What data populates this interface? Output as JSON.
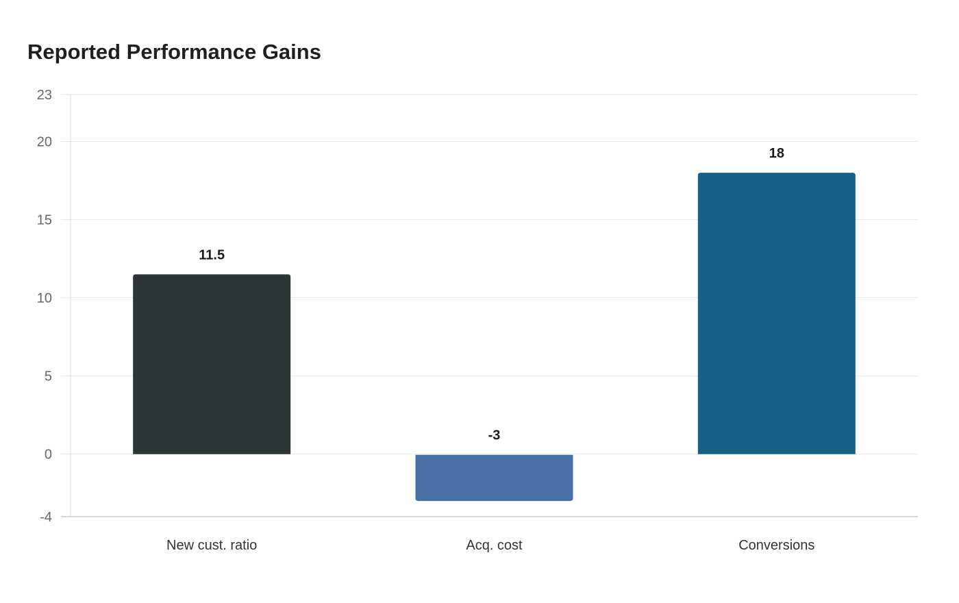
{
  "chart_data": {
    "type": "bar",
    "title": "Reported Performance Gains",
    "xlabel": "",
    "ylabel": "",
    "categories": [
      "New cust. ratio",
      "Acq. cost",
      "Conversions"
    ],
    "values": [
      11.5,
      -3,
      18
    ],
    "data_labels": [
      "11.5",
      "-3",
      "18"
    ],
    "colors": [
      "#2d3436",
      "#4a6fa5",
      "#166088"
    ],
    "ylim": [
      -4,
      23
    ],
    "yticks": [
      -4,
      0,
      5,
      10,
      15,
      20,
      23
    ],
    "grid": true,
    "legend": "none"
  }
}
